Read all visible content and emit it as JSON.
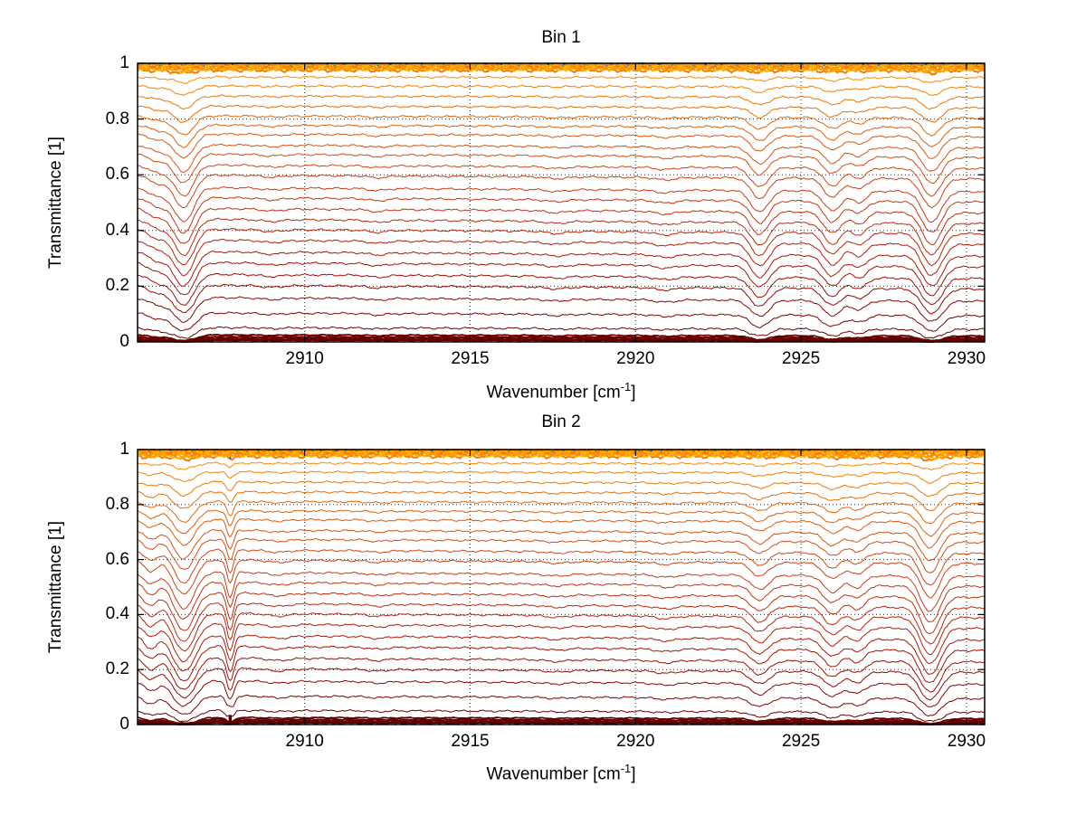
{
  "figure": {
    "background": "#ffffff"
  },
  "chart_data": [
    {
      "type": "line",
      "title": "Bin 1",
      "xlabel": "Wavenumber [cm⁻¹]",
      "xlabel_parts": {
        "prefix": "Wavenumber [cm",
        "sup": "-1",
        "suffix": "]"
      },
      "ylabel": "Transmittance [1]",
      "xlim": [
        2904.95,
        2930.55
      ],
      "ylim": [
        0,
        1
      ],
      "xticks": [
        2910,
        2915,
        2920,
        2925,
        2930
      ],
      "xtick_labels": [
        "2910",
        "2915",
        "2920",
        "2925",
        "2930"
      ],
      "yticks": [
        0,
        0.2,
        0.4,
        0.6,
        0.8,
        1
      ],
      "ytick_labels": [
        "0",
        "0.2",
        "0.4",
        "0.6",
        "0.8",
        "1"
      ],
      "grid": "dotted",
      "legend": "none",
      "n_curves": 40,
      "curve_baselines": [
        0.999,
        0.997,
        0.995,
        0.993,
        0.99,
        0.987,
        0.984,
        0.98,
        0.976,
        0.951,
        0.919,
        0.883,
        0.847,
        0.812,
        0.779,
        0.747,
        0.708,
        0.675,
        0.636,
        0.6,
        0.555,
        0.519,
        0.48,
        0.442,
        0.406,
        0.367,
        0.325,
        0.286,
        0.244,
        0.205,
        0.16,
        0.105,
        0.052,
        0.026,
        0.02,
        0.016,
        0.012,
        0.009,
        0.007,
        0.006
      ],
      "absorption_lines": [
        {
          "center": 2905.6,
          "width": 0.3,
          "depth": 0.1
        },
        {
          "center": 2906.35,
          "width": 0.28,
          "depth": 0.42
        },
        {
          "center": 2909.0,
          "width": 0.3,
          "depth": 0.02
        },
        {
          "center": 2912.2,
          "width": 0.25,
          "depth": 0.022
        },
        {
          "center": 2917.6,
          "width": 0.3,
          "depth": 0.022
        },
        {
          "center": 2920.9,
          "width": 0.3,
          "depth": 0.03
        },
        {
          "center": 2923.75,
          "width": 0.26,
          "depth": 0.26
        },
        {
          "center": 2925.95,
          "width": 0.26,
          "depth": 0.24
        },
        {
          "center": 2926.75,
          "width": 0.22,
          "depth": 0.13
        },
        {
          "center": 2928.95,
          "width": 0.28,
          "depth": 0.38
        }
      ],
      "baseline_tilt": 0.05,
      "spike_x": null,
      "accent_lines": [
        {
          "name": "navy-dashed-line",
          "level": 1.0,
          "color": "#16377d",
          "dash": "2 16"
        },
        {
          "name": "teal-dashed-line",
          "level": 0.995,
          "color": "#2b9aa0",
          "dash": "2 11"
        }
      ],
      "color_low": "#600000",
      "color_mid": "#c83c14",
      "color_high": "#ff9900"
    },
    {
      "type": "line",
      "title": "Bin 2",
      "xlabel": "Wavenumber [cm⁻¹]",
      "xlabel_parts": {
        "prefix": "Wavenumber [cm",
        "sup": "-1",
        "suffix": "]"
      },
      "ylabel": "Transmittance [1]",
      "xlim": [
        2904.95,
        2930.55
      ],
      "ylim": [
        0,
        1
      ],
      "xticks": [
        2910,
        2915,
        2920,
        2925,
        2930
      ],
      "xtick_labels": [
        "2910",
        "2915",
        "2920",
        "2925",
        "2930"
      ],
      "yticks": [
        0,
        0.2,
        0.4,
        0.6,
        0.8,
        1
      ],
      "ytick_labels": [
        "0",
        "0.2",
        "0.4",
        "0.6",
        "0.8",
        "1"
      ],
      "grid": "dotted",
      "legend": "none",
      "n_curves": 40,
      "curve_baselines": [
        0.999,
        0.997,
        0.995,
        0.993,
        0.99,
        0.987,
        0.984,
        0.98,
        0.976,
        0.951,
        0.919,
        0.883,
        0.847,
        0.812,
        0.779,
        0.747,
        0.708,
        0.675,
        0.636,
        0.6,
        0.555,
        0.519,
        0.48,
        0.442,
        0.406,
        0.367,
        0.325,
        0.286,
        0.244,
        0.205,
        0.16,
        0.105,
        0.052,
        0.026,
        0.02,
        0.016,
        0.012,
        0.009,
        0.007,
        0.006
      ],
      "absorption_lines": [
        {
          "center": 2905.35,
          "width": 0.2,
          "depth": 0.14
        },
        {
          "center": 2906.35,
          "width": 0.3,
          "depth": 0.46
        },
        {
          "center": 2907.75,
          "width": 0.1,
          "depth": 0.3
        },
        {
          "center": 2909.2,
          "width": 0.3,
          "depth": 0.025
        },
        {
          "center": 2912.2,
          "width": 0.25,
          "depth": 0.02
        },
        {
          "center": 2917.6,
          "width": 0.3,
          "depth": 0.02
        },
        {
          "center": 2920.9,
          "width": 0.3,
          "depth": 0.028
        },
        {
          "center": 2923.75,
          "width": 0.26,
          "depth": 0.17
        },
        {
          "center": 2925.95,
          "width": 0.26,
          "depth": 0.2
        },
        {
          "center": 2926.7,
          "width": 0.22,
          "depth": 0.14
        },
        {
          "center": 2928.9,
          "width": 0.28,
          "depth": 0.46
        }
      ],
      "baseline_tilt": 0.05,
      "spike_x": 2907.75,
      "accent_lines": [
        {
          "name": "navy-dashed-line",
          "level": 1.0,
          "color": "#16377d",
          "dash": "2 16"
        },
        {
          "name": "teal-dashed-line",
          "level": 0.995,
          "color": "#2b9aa0",
          "dash": "2 11"
        }
      ],
      "color_low": "#600000",
      "color_mid": "#c83c14",
      "color_high": "#ff9900"
    }
  ]
}
